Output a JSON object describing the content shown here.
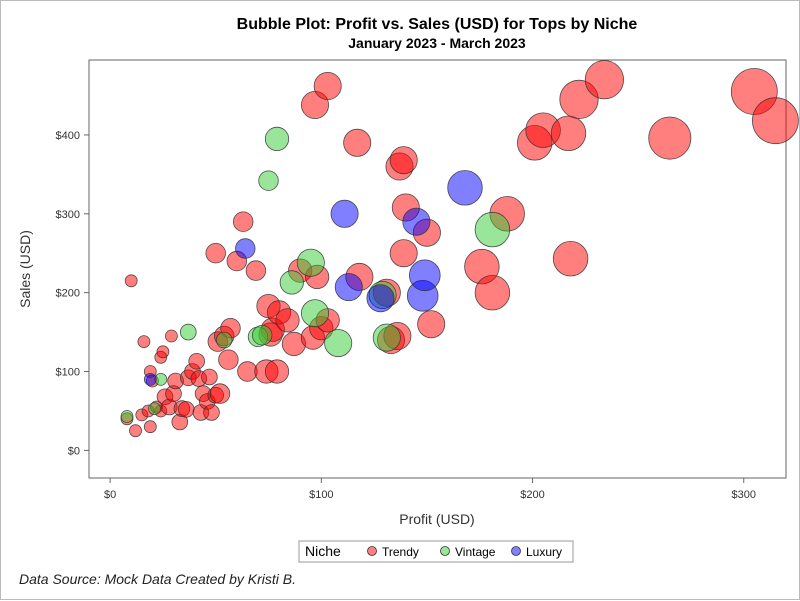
{
  "chart_data": {
    "type": "scatter",
    "title": "Bubble Plot: Profit vs. Sales (USD) for Tops by Niche",
    "subtitle": "January 2023 - March 2023",
    "xlabel": "Profit (USD)",
    "ylabel": "Sales (USD)",
    "xlim": [
      -10,
      320
    ],
    "ylim": [
      -35,
      495
    ],
    "xticks": [
      0,
      100,
      200,
      300
    ],
    "xtick_labels": [
      "$0",
      "$100",
      "$200",
      "$300"
    ],
    "yticks": [
      0,
      100,
      200,
      300,
      400
    ],
    "ytick_labels": [
      "$0",
      "$100",
      "$200",
      "$300",
      "$400"
    ],
    "grid": false,
    "legend": {
      "title": "Niche",
      "position": "bottom-center",
      "entries": [
        "Trendy",
        "Vintage",
        "Luxury"
      ]
    },
    "colors": {
      "Trendy": "#ff0000",
      "Vintage": "#33cc33",
      "Luxury": "#0000ff"
    },
    "series": [
      {
        "name": "Trendy",
        "points": [
          [
            10,
            215,
            4
          ],
          [
            16,
            138,
            4
          ],
          [
            24,
            118,
            4
          ],
          [
            25,
            125,
            4
          ],
          [
            29,
            145,
            4
          ],
          [
            19,
            100,
            4
          ],
          [
            20,
            88,
            4
          ],
          [
            8,
            40,
            4
          ],
          [
            12,
            25,
            4
          ],
          [
            15,
            45,
            4
          ],
          [
            19,
            30,
            4
          ],
          [
            18,
            50,
            4
          ],
          [
            22,
            55,
            4
          ],
          [
            24,
            50,
            4
          ],
          [
            26,
            68,
            5
          ],
          [
            28,
            55,
            5
          ],
          [
            30,
            72,
            5
          ],
          [
            31,
            88,
            5
          ],
          [
            33,
            36,
            5
          ],
          [
            34,
            53,
            5
          ],
          [
            36,
            52,
            5
          ],
          [
            37,
            92,
            5
          ],
          [
            39,
            100,
            5
          ],
          [
            41,
            113,
            5
          ],
          [
            42,
            91,
            5
          ],
          [
            43,
            48,
            5
          ],
          [
            44,
            72,
            5
          ],
          [
            46,
            62,
            5
          ],
          [
            47,
            93,
            5
          ],
          [
            48,
            48,
            5
          ],
          [
            50,
            70,
            5
          ],
          [
            51,
            138,
            6
          ],
          [
            52,
            72,
            6
          ],
          [
            54,
            145,
            6
          ],
          [
            56,
            115,
            6
          ],
          [
            57,
            155,
            6
          ],
          [
            65,
            100,
            6
          ],
          [
            50,
            250,
            6
          ],
          [
            60,
            240,
            6
          ],
          [
            63,
            290,
            6
          ],
          [
            69,
            228,
            6
          ],
          [
            74,
            100,
            7
          ],
          [
            75,
            183,
            7
          ],
          [
            76,
            147,
            7
          ],
          [
            77,
            153,
            7
          ],
          [
            79,
            100,
            7
          ],
          [
            80,
            175,
            7
          ],
          [
            84,
            165,
            7
          ],
          [
            87,
            135,
            7
          ],
          [
            90,
            228,
            7
          ],
          [
            96,
            143,
            7
          ],
          [
            98,
            220,
            7
          ],
          [
            100,
            155,
            7
          ],
          [
            103,
            165,
            7
          ],
          [
            118,
            220,
            8
          ],
          [
            131,
            200,
            8
          ],
          [
            133,
            140,
            8
          ],
          [
            136,
            145,
            8
          ],
          [
            137,
            360,
            8
          ],
          [
            139,
            368,
            8
          ],
          [
            139,
            250,
            8
          ],
          [
            140,
            308,
            8
          ],
          [
            150,
            276,
            8
          ],
          [
            152,
            160,
            8
          ],
          [
            97,
            438,
            8
          ],
          [
            103,
            462,
            8
          ],
          [
            117,
            390,
            8
          ],
          [
            176,
            233,
            10
          ],
          [
            181,
            200,
            10
          ],
          [
            188,
            300,
            10
          ],
          [
            201,
            390,
            10
          ],
          [
            205,
            406,
            10
          ],
          [
            217,
            402,
            10
          ],
          [
            218,
            243,
            10
          ],
          [
            222,
            445,
            11
          ],
          [
            234,
            470,
            11
          ],
          [
            265,
            396,
            12
          ],
          [
            305,
            455,
            13
          ],
          [
            315,
            418,
            13
          ]
        ]
      },
      {
        "name": "Vintage",
        "points": [
          [
            8,
            43,
            4
          ],
          [
            21,
            53,
            4
          ],
          [
            24,
            90,
            4
          ],
          [
            37,
            150,
            5
          ],
          [
            54,
            140,
            5
          ],
          [
            70,
            144,
            6
          ],
          [
            72,
            146,
            6
          ],
          [
            75,
            342,
            6
          ],
          [
            79,
            395,
            7
          ],
          [
            86,
            213,
            7
          ],
          [
            95,
            238,
            8
          ],
          [
            97,
            174,
            8
          ],
          [
            108,
            136,
            8
          ],
          [
            129,
            197,
            8
          ],
          [
            131,
            143,
            8
          ],
          [
            181,
            280,
            10
          ]
        ]
      },
      {
        "name": "Luxury",
        "points": [
          [
            19,
            90,
            4
          ],
          [
            64,
            256,
            6
          ],
          [
            111,
            300,
            8
          ],
          [
            113,
            207,
            8
          ],
          [
            128,
            193,
            8
          ],
          [
            145,
            290,
            8
          ],
          [
            148,
            196,
            9
          ],
          [
            149,
            222,
            9
          ],
          [
            168,
            333,
            10
          ]
        ]
      }
    ]
  },
  "footnote": "Data Source: Mock Data Created by Kristi B."
}
